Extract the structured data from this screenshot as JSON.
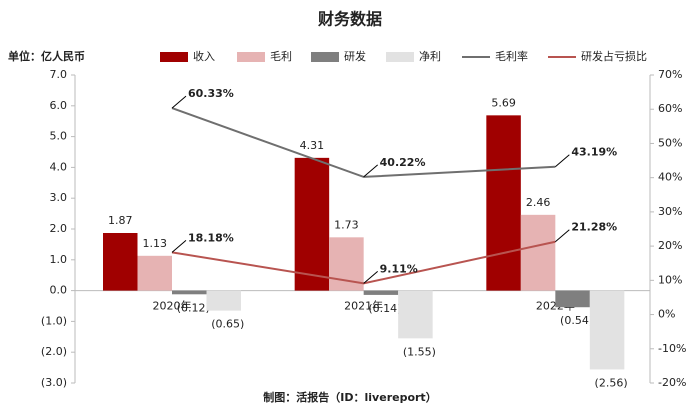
{
  "chart_data": {
    "type": "bar",
    "title": "财务数据",
    "unit_label": "单位：亿人民币",
    "source": "制图：活报告（ID：livereport）",
    "categories": [
      "2020年",
      "2021年",
      "2022年"
    ],
    "series": [
      {
        "name": "收入",
        "color": "#a00000",
        "values": [
          1.87,
          4.31,
          5.69
        ]
      },
      {
        "name": "毛利",
        "color": "#e6b3b3",
        "values": [
          1.13,
          1.73,
          2.46
        ]
      },
      {
        "name": "研发",
        "color": "#7f7f7f",
        "values": [
          -0.12,
          -0.14,
          -0.54
        ],
        "value_labels": [
          "(0.12)",
          "(0.14)",
          "(0.54)"
        ]
      },
      {
        "name": "净利",
        "color": "#e2e2e2",
        "values": [
          -0.65,
          -1.55,
          -2.56
        ],
        "value_labels": [
          "(0.65)",
          "(1.55)",
          "(2.56)"
        ]
      },
      {
        "name": "毛利率",
        "type": "line",
        "axis": "y2",
        "color": "#6f6f6f",
        "values": [
          60.33,
          40.22,
          43.19
        ],
        "value_labels": [
          "60.33%",
          "40.22%",
          "43.19%"
        ]
      },
      {
        "name": "研发占亏损比",
        "type": "line",
        "axis": "y2",
        "color": "#b85450",
        "values": [
          18.18,
          9.11,
          21.28
        ],
        "value_labels": [
          "18.18%",
          "9.11%",
          "21.28%"
        ]
      }
    ],
    "ylim": [
      -3,
      7
    ],
    "yticks": [
      {
        "value": -3,
        "label": "(3.0)"
      },
      {
        "value": -2,
        "label": "(2.0)"
      },
      {
        "value": -1,
        "label": "(1.0)"
      },
      {
        "value": 0,
        "label": "0.0"
      },
      {
        "value": 1,
        "label": "1.0"
      },
      {
        "value": 2,
        "label": "2.0"
      },
      {
        "value": 3,
        "label": "3.0"
      },
      {
        "value": 4,
        "label": "4.0"
      },
      {
        "value": 5,
        "label": "5.0"
      },
      {
        "value": 6,
        "label": "6.0"
      },
      {
        "value": 7,
        "label": "7.0"
      }
    ],
    "y2lim": [
      -20,
      70
    ],
    "y2ticks": [
      {
        "value": -20,
        "label": "-20%"
      },
      {
        "value": -10,
        "label": "-10%"
      },
      {
        "value": 0,
        "label": "0%"
      },
      {
        "value": 10,
        "label": "10%"
      },
      {
        "value": 20,
        "label": "20%"
      },
      {
        "value": 30,
        "label": "30%"
      },
      {
        "value": 40,
        "label": "40%"
      },
      {
        "value": 50,
        "label": "50%"
      },
      {
        "value": 60,
        "label": "60%"
      },
      {
        "value": 70,
        "label": "70%"
      }
    ],
    "negative_label_color": "#e00000"
  }
}
